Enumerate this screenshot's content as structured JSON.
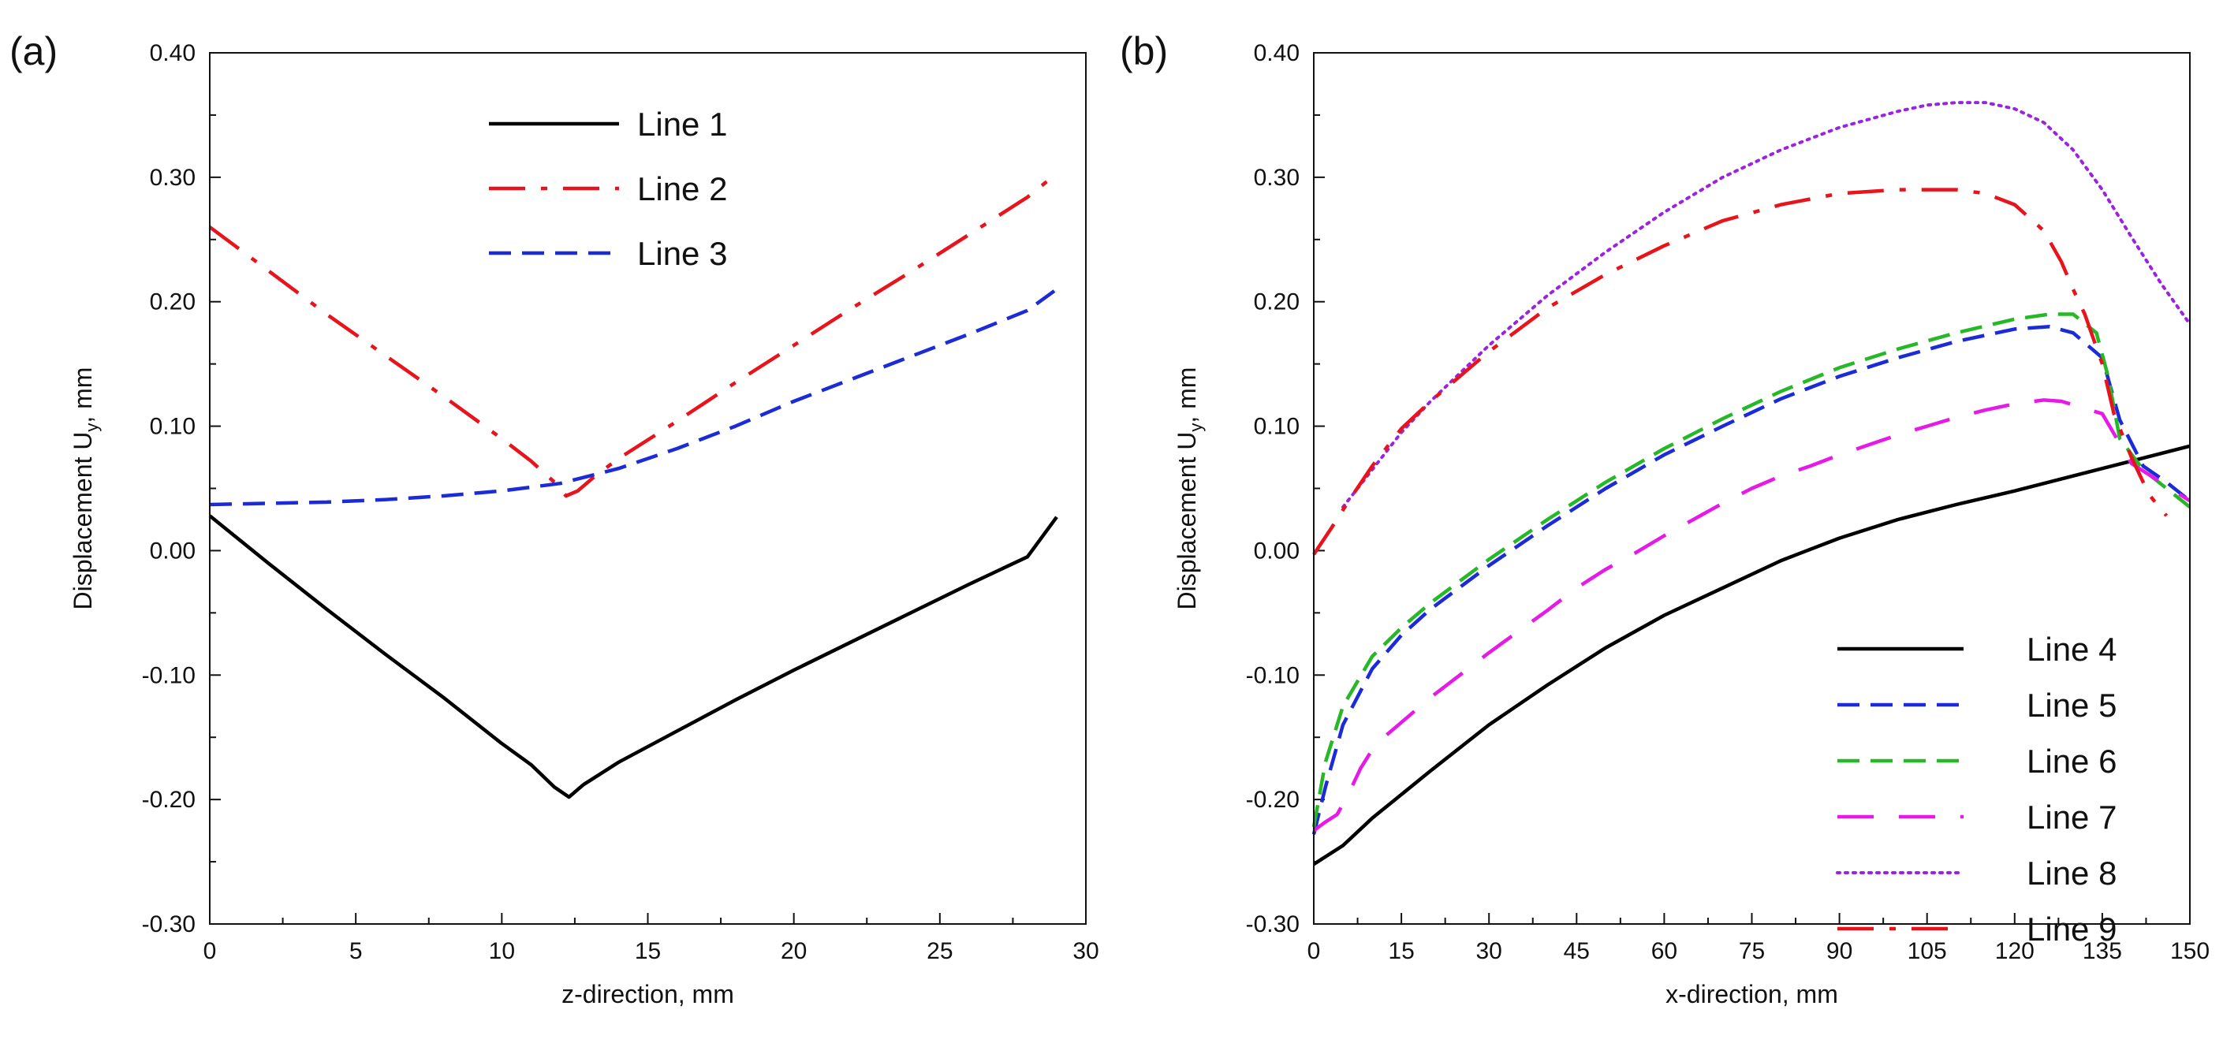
{
  "chart_data": [
    {
      "panel_label": "(a)",
      "type": "line",
      "xlabel": "z-direction, mm",
      "ylabel": "Displacement U",
      "ylabel_sub": "y",
      "ylabel_suffix": ", mm",
      "xlim": [
        0,
        30
      ],
      "ylim": [
        -0.3,
        0.4
      ],
      "xticks": [
        "0",
        "5",
        "10",
        "15",
        "20",
        "25",
        "30"
      ],
      "yticks": [
        "-0.30",
        "-0.20",
        "-0.10",
        "0.00",
        "0.10",
        "0.20",
        "0.30",
        "0.40"
      ],
      "legend_position": "top-center",
      "series": [
        {
          "name": "Line 1",
          "color": "#000000",
          "dash": "solid",
          "x": [
            0,
            2,
            4,
            6,
            8,
            10,
            11,
            11.8,
            12.3,
            12.8,
            14,
            16,
            18,
            20,
            22,
            24,
            26,
            28,
            29
          ],
          "y": [
            0.028,
            -0.01,
            -0.047,
            -0.083,
            -0.118,
            -0.155,
            -0.172,
            -0.19,
            -0.198,
            -0.188,
            -0.17,
            -0.145,
            -0.12,
            -0.096,
            -0.073,
            -0.05,
            -0.027,
            -0.005,
            0.027
          ]
        },
        {
          "name": "Line 2",
          "color": "#e8141c",
          "dash": "longdot",
          "x": [
            0,
            2,
            4,
            6,
            8,
            10,
            11,
            11.8,
            12.2,
            12.6,
            13.2,
            14,
            16,
            18,
            20,
            22,
            24,
            26,
            28,
            29
          ],
          "y": [
            0.26,
            0.225,
            0.19,
            0.157,
            0.124,
            0.09,
            0.072,
            0.055,
            0.044,
            0.048,
            0.06,
            0.074,
            0.104,
            0.135,
            0.165,
            0.195,
            0.224,
            0.254,
            0.284,
            0.303
          ]
        },
        {
          "name": "Line 3",
          "color": "#1b2bd8",
          "dash": "dashed",
          "x": [
            0,
            2,
            4,
            6,
            8,
            10,
            12,
            14,
            16,
            18,
            20,
            22,
            24,
            26,
            28,
            29
          ],
          "y": [
            0.037,
            0.038,
            0.039,
            0.041,
            0.044,
            0.048,
            0.054,
            0.066,
            0.082,
            0.1,
            0.12,
            0.138,
            0.156,
            0.174,
            0.193,
            0.21
          ]
        }
      ]
    },
    {
      "panel_label": "(b)",
      "type": "line",
      "xlabel": "x-direction, mm",
      "ylabel": "Displacement U",
      "ylabel_sub": "y",
      "ylabel_suffix": ", mm",
      "xlim": [
        0,
        150
      ],
      "ylim": [
        -0.3,
        0.4
      ],
      "xticks": [
        "0",
        "15",
        "30",
        "45",
        "60",
        "75",
        "90",
        "105",
        "120",
        "135",
        "150"
      ],
      "yticks": [
        "-0.30",
        "-0.20",
        "-0.10",
        "0.00",
        "0.10",
        "0.20",
        "0.30",
        "0.40"
      ],
      "legend_position": "bottom-right",
      "series": [
        {
          "name": "Line 4",
          "color": "#000000",
          "dash": "solid",
          "x": [
            0,
            5,
            10,
            20,
            30,
            40,
            50,
            60,
            70,
            80,
            90,
            100,
            110,
            120,
            130,
            140,
            150
          ],
          "y": [
            -0.252,
            -0.237,
            -0.215,
            -0.177,
            -0.14,
            -0.108,
            -0.078,
            -0.052,
            -0.03,
            -0.008,
            0.01,
            0.025,
            0.037,
            0.048,
            0.06,
            0.072,
            0.084
          ]
        },
        {
          "name": "Line 5",
          "color": "#1b2bd8",
          "dash": "dashed",
          "x": [
            0,
            2,
            5,
            10,
            15,
            20,
            30,
            40,
            50,
            60,
            70,
            80,
            90,
            100,
            110,
            120,
            126,
            130,
            135,
            138,
            142,
            146,
            150
          ],
          "y": [
            -0.228,
            -0.19,
            -0.14,
            -0.095,
            -0.068,
            -0.047,
            -0.012,
            0.02,
            0.05,
            0.077,
            0.1,
            0.122,
            0.14,
            0.155,
            0.168,
            0.178,
            0.18,
            0.175,
            0.155,
            0.105,
            0.068,
            0.055,
            0.04
          ]
        },
        {
          "name": "Line 6",
          "color": "#26b826",
          "dash": "dashed",
          "x": [
            0,
            2,
            5,
            10,
            15,
            20,
            30,
            40,
            50,
            60,
            70,
            80,
            90,
            100,
            110,
            120,
            126,
            130,
            134,
            136,
            138,
            142,
            146,
            150
          ],
          "y": [
            -0.222,
            -0.17,
            -0.125,
            -0.085,
            -0.062,
            -0.042,
            -0.007,
            0.025,
            0.055,
            0.082,
            0.106,
            0.128,
            0.147,
            0.162,
            0.175,
            0.186,
            0.19,
            0.19,
            0.175,
            0.14,
            0.09,
            0.065,
            0.05,
            0.035
          ]
        },
        {
          "name": "Line 7",
          "color": "#e619e6",
          "dash": "dash-gap",
          "x": [
            0,
            2,
            4,
            6,
            8,
            10,
            12,
            15,
            20,
            25,
            30,
            35,
            40,
            45,
            50,
            55,
            60,
            65,
            70,
            75,
            80,
            85,
            90,
            95,
            100,
            105,
            110,
            115,
            120,
            125,
            128,
            135,
            140,
            145,
            150
          ],
          "y": [
            -0.225,
            -0.218,
            -0.212,
            -0.195,
            -0.175,
            -0.16,
            -0.15,
            -0.138,
            -0.118,
            -0.1,
            -0.082,
            -0.065,
            -0.048,
            -0.03,
            -0.015,
            -0.002,
            0.012,
            0.025,
            0.038,
            0.05,
            0.06,
            0.068,
            0.077,
            0.085,
            0.093,
            0.1,
            0.107,
            0.113,
            0.118,
            0.121,
            0.12,
            0.11,
            0.07,
            0.055,
            0.04
          ]
        },
        {
          "name": "Line 8",
          "color": "#9b22e0",
          "dash": "dotted",
          "x": [
            5,
            10,
            15,
            20,
            30,
            40,
            50,
            60,
            70,
            80,
            90,
            100,
            105,
            110,
            115,
            120,
            125,
            130,
            135,
            140,
            145,
            150
          ],
          "y": [
            0.035,
            0.065,
            0.095,
            0.12,
            0.165,
            0.205,
            0.24,
            0.272,
            0.3,
            0.322,
            0.34,
            0.353,
            0.358,
            0.36,
            0.36,
            0.355,
            0.344,
            0.322,
            0.29,
            0.252,
            0.215,
            0.182
          ]
        },
        {
          "name": "Line 9",
          "color": "#e8141c",
          "dash": "longdot",
          "x": [
            0,
            3,
            6,
            10,
            15,
            20,
            25,
            30,
            40,
            50,
            60,
            70,
            80,
            90,
            100,
            110,
            115,
            120,
            125,
            128,
            130,
            132,
            135,
            137,
            140,
            143,
            146
          ],
          "y": [
            -0.003,
            0.018,
            0.04,
            0.068,
            0.098,
            0.12,
            0.14,
            0.16,
            0.195,
            0.222,
            0.245,
            0.265,
            0.278,
            0.287,
            0.29,
            0.29,
            0.287,
            0.278,
            0.257,
            0.232,
            0.21,
            0.19,
            0.15,
            0.11,
            0.075,
            0.045,
            0.028
          ]
        }
      ]
    }
  ]
}
